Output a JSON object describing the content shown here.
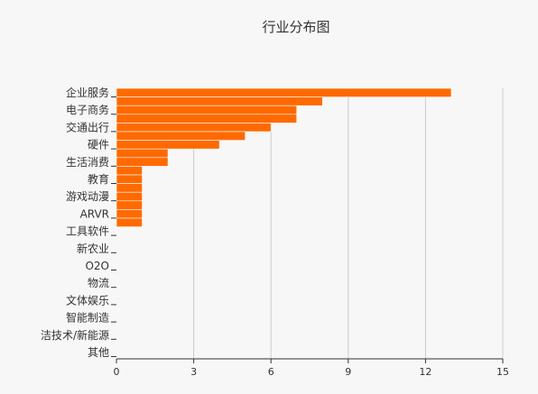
{
  "chart_data": {
    "type": "bar",
    "orientation": "horizontal",
    "title": "行业分布图",
    "xlabel": "",
    "ylabel": "",
    "xlim": [
      0,
      15
    ],
    "x_ticks": [
      0,
      3,
      6,
      9,
      12,
      15
    ],
    "grid": true,
    "categories": [
      "企业服务",
      "电子商务",
      "交通出行",
      "硬件",
      "生活消费",
      "教育",
      "游戏动漫",
      "ARVR",
      "工具软件",
      "新农业",
      "O2O",
      "物流",
      "文体娱乐",
      "智能制造",
      "洁技术/新能源",
      "其他"
    ],
    "bars": [
      13,
      8,
      7,
      7,
      6,
      5,
      4,
      2,
      2,
      1,
      1,
      1,
      1,
      1,
      1,
      1
    ],
    "bar_color": "#ff6a00"
  }
}
